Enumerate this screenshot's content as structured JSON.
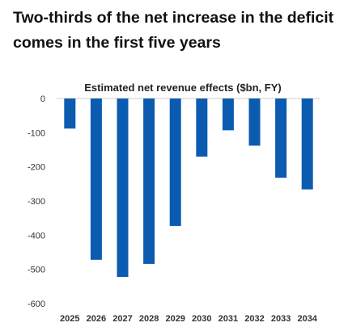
{
  "headline": "Two-thirds of the net increase in the deficit comes in the first five years",
  "chart_data": {
    "type": "bar",
    "title": "Estimated net revenue effects ($bn, FY)",
    "categories": [
      "2025",
      "2026",
      "2027",
      "2028",
      "2029",
      "2030",
      "2031",
      "2032",
      "2033",
      "2034"
    ],
    "values": [
      -88,
      -472,
      -522,
      -484,
      -373,
      -170,
      -93,
      -138,
      -232,
      -266
    ],
    "ylim": [
      -600,
      0
    ],
    "yticks": [
      0,
      -100,
      -200,
      -300,
      -400,
      -500,
      -600
    ],
    "ytick_labels": [
      "0",
      "-100",
      "-200",
      "-300",
      "-400",
      "-500",
      "-600"
    ],
    "grid": false,
    "bar_color": "#0b5cb0"
  }
}
